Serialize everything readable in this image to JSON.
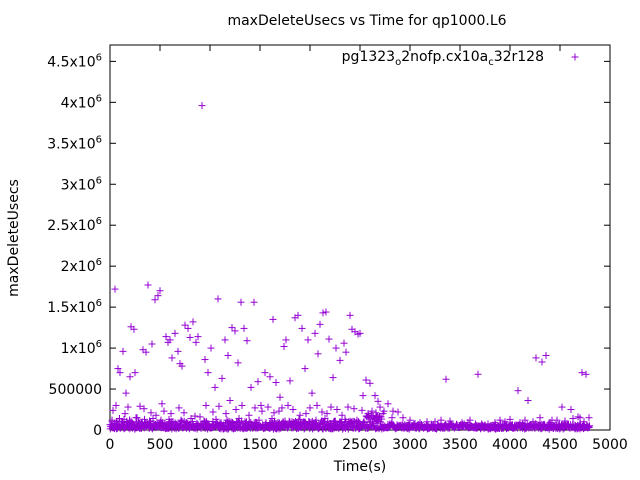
{
  "chart_data": {
    "type": "scatter",
    "title": "maxDeleteUsecs vs Time for qp1000.L6",
    "xlabel": "Time(s)",
    "ylabel": "maxDeleteUsecs",
    "xlim": [
      0,
      5000
    ],
    "ylim": [
      0,
      4700000
    ],
    "grid": false,
    "legend_position": "top-right",
    "marker": "plus",
    "x_ticks": [
      {
        "value": 0,
        "label": "0"
      },
      {
        "value": 500,
        "label": "500"
      },
      {
        "value": 1000,
        "label": "1000"
      },
      {
        "value": 1500,
        "label": "1500"
      },
      {
        "value": 2000,
        "label": "2000"
      },
      {
        "value": 2500,
        "label": "2500"
      },
      {
        "value": 3000,
        "label": "3000"
      },
      {
        "value": 3500,
        "label": "3500"
      },
      {
        "value": 4000,
        "label": "4000"
      },
      {
        "value": 4500,
        "label": "4500"
      },
      {
        "value": 5000,
        "label": "5000"
      }
    ],
    "y_ticks": [
      {
        "value": 0,
        "base": "0",
        "exp": ""
      },
      {
        "value": 500000,
        "base": "500000",
        "exp": ""
      },
      {
        "value": 1000000,
        "base": "1x10",
        "exp": "6"
      },
      {
        "value": 1500000,
        "base": "1.5x10",
        "exp": "6"
      },
      {
        "value": 2000000,
        "base": "2x10",
        "exp": "6"
      },
      {
        "value": 2500000,
        "base": "2.5x10",
        "exp": "6"
      },
      {
        "value": 3000000,
        "base": "3x10",
        "exp": "6"
      },
      {
        "value": 3500000,
        "base": "3.5x10",
        "exp": "6"
      },
      {
        "value": 4000000,
        "base": "4x10",
        "exp": "6"
      },
      {
        "value": 4500000,
        "base": "4.5x10",
        "exp": "6"
      }
    ],
    "legend": {
      "p1": "pg1323",
      "s1": "o",
      "p2": "2nofp.cx10a",
      "s2": "c",
      "p3": "32r128"
    },
    "series": [
      {
        "color": "#9400d3",
        "points": [
          [
            50,
            1720000
          ],
          [
            80,
            750000
          ],
          [
            100,
            700000
          ],
          [
            130,
            960000
          ],
          [
            160,
            450000
          ],
          [
            200,
            650000
          ],
          [
            210,
            1260000
          ],
          [
            240,
            1230000
          ],
          [
            250,
            700000
          ],
          [
            300,
            290000
          ],
          [
            330,
            980000
          ],
          [
            360,
            950000
          ],
          [
            380,
            1770000
          ],
          [
            420,
            1050000
          ],
          [
            450,
            1590000
          ],
          [
            480,
            1640000
          ],
          [
            500,
            1700000
          ],
          [
            520,
            320000
          ],
          [
            560,
            1140000
          ],
          [
            580,
            1070000
          ],
          [
            600,
            1100000
          ],
          [
            620,
            880000
          ],
          [
            650,
            1180000
          ],
          [
            680,
            960000
          ],
          [
            700,
            810000
          ],
          [
            720,
            780000
          ],
          [
            750,
            1280000
          ],
          [
            780,
            1240000
          ],
          [
            800,
            1130000
          ],
          [
            830,
            1320000
          ],
          [
            860,
            1070000
          ],
          [
            880,
            1140000
          ],
          [
            920,
            3960000
          ],
          [
            950,
            860000
          ],
          [
            980,
            700000
          ],
          [
            1010,
            1000000
          ],
          [
            1050,
            520000
          ],
          [
            1080,
            1600000
          ],
          [
            1120,
            630000
          ],
          [
            1150,
            1100000
          ],
          [
            1180,
            910000
          ],
          [
            1220,
            1250000
          ],
          [
            1250,
            1210000
          ],
          [
            1280,
            820000
          ],
          [
            1310,
            1560000
          ],
          [
            1340,
            1240000
          ],
          [
            1370,
            1090000
          ],
          [
            1410,
            520000
          ],
          [
            1440,
            1560000
          ],
          [
            1480,
            590000
          ],
          [
            1510,
            300000
          ],
          [
            1550,
            700000
          ],
          [
            1600,
            650000
          ],
          [
            1630,
            1350000
          ],
          [
            1660,
            580000
          ],
          [
            1700,
            400000
          ],
          [
            1740,
            1020000
          ],
          [
            1760,
            1100000
          ],
          [
            1800,
            600000
          ],
          [
            1850,
            1370000
          ],
          [
            1880,
            1400000
          ],
          [
            1920,
            1240000
          ],
          [
            1950,
            750000
          ],
          [
            1980,
            1100000
          ],
          [
            2020,
            450000
          ],
          [
            2050,
            1180000
          ],
          [
            2080,
            930000
          ],
          [
            2100,
            1290000
          ],
          [
            2130,
            1430000
          ],
          [
            2160,
            1440000
          ],
          [
            2190,
            1110000
          ],
          [
            2230,
            640000
          ],
          [
            2260,
            1000000
          ],
          [
            2300,
            850000
          ],
          [
            2340,
            1060000
          ],
          [
            2360,
            950000
          ],
          [
            2400,
            1400000
          ],
          [
            2420,
            1230000
          ],
          [
            2450,
            1200000
          ],
          [
            2480,
            1170000
          ],
          [
            2500,
            1180000
          ],
          [
            2530,
            420000
          ],
          [
            2560,
            610000
          ],
          [
            2600,
            570000
          ],
          [
            2650,
            420000
          ],
          [
            2680,
            350000
          ],
          [
            2700,
            280000
          ],
          [
            2730,
            200000
          ],
          [
            2780,
            320000
          ],
          [
            2830,
            230000
          ],
          [
            2880,
            220000
          ],
          [
            2930,
            150000
          ],
          [
            3050,
            80000
          ],
          [
            3170,
            100000
          ],
          [
            3310,
            120000
          ],
          [
            3360,
            620000
          ],
          [
            3430,
            60000
          ],
          [
            3580,
            90000
          ],
          [
            3680,
            680000
          ],
          [
            3850,
            90000
          ],
          [
            3950,
            100000
          ],
          [
            4080,
            480000
          ],
          [
            4180,
            360000
          ],
          [
            4260,
            880000
          ],
          [
            4320,
            830000
          ],
          [
            4360,
            910000
          ],
          [
            4420,
            120000
          ],
          [
            4520,
            280000
          ],
          [
            4610,
            250000
          ],
          [
            4700,
            150000
          ],
          [
            4720,
            700000
          ],
          [
            4760,
            680000
          ],
          [
            30,
            240000
          ],
          [
            60,
            300000
          ],
          [
            150,
            200000
          ],
          [
            180,
            280000
          ],
          [
            270,
            150000
          ],
          [
            340,
            260000
          ],
          [
            410,
            210000
          ],
          [
            460,
            180000
          ],
          [
            540,
            230000
          ],
          [
            610,
            200000
          ],
          [
            690,
            270000
          ],
          [
            740,
            210000
          ],
          [
            850,
            170000
          ],
          [
            900,
            160000
          ],
          [
            960,
            300000
          ],
          [
            1030,
            220000
          ],
          [
            1090,
            290000
          ],
          [
            1160,
            200000
          ],
          [
            1200,
            360000
          ],
          [
            1260,
            250000
          ],
          [
            1320,
            300000
          ],
          [
            1390,
            180000
          ],
          [
            1450,
            270000
          ],
          [
            1520,
            230000
          ],
          [
            1580,
            280000
          ],
          [
            1640,
            210000
          ],
          [
            1690,
            230000
          ],
          [
            1720,
            270000
          ],
          [
            1780,
            300000
          ],
          [
            1830,
            250000
          ],
          [
            1900,
            180000
          ],
          [
            1960,
            200000
          ],
          [
            2000,
            270000
          ],
          [
            2070,
            300000
          ],
          [
            2120,
            220000
          ],
          [
            2170,
            200000
          ],
          [
            2210,
            280000
          ],
          [
            2270,
            250000
          ],
          [
            2320,
            180000
          ],
          [
            2380,
            280000
          ],
          [
            2440,
            260000
          ],
          [
            2520,
            240000
          ],
          [
            2580,
            200000
          ],
          [
            2620,
            230000
          ],
          [
            2660,
            210000
          ],
          [
            2740,
            230000
          ],
          [
            2820,
            150000
          ],
          [
            3000,
            120000
          ],
          [
            3100,
            90000
          ],
          [
            3250,
            100000
          ],
          [
            3400,
            110000
          ],
          [
            3520,
            90000
          ],
          [
            3600,
            120000
          ],
          [
            3750,
            60000
          ],
          [
            3900,
            120000
          ],
          [
            4000,
            130000
          ],
          [
            4100,
            90000
          ],
          [
            4150,
            120000
          ],
          [
            4230,
            100000
          ],
          [
            4300,
            150000
          ],
          [
            4400,
            90000
          ],
          [
            4470,
            120000
          ],
          [
            4550,
            110000
          ],
          [
            4630,
            140000
          ],
          [
            4680,
            160000
          ],
          [
            4740,
            100000
          ],
          [
            4790,
            150000
          ],
          [
            20,
            120000
          ],
          [
            45,
            80000
          ],
          [
            70,
            100000
          ],
          [
            95,
            140000
          ],
          [
            115,
            60000
          ],
          [
            140,
            130000
          ],
          [
            170,
            90000
          ],
          [
            195,
            120000
          ],
          [
            225,
            70000
          ],
          [
            260,
            150000
          ],
          [
            285,
            100000
          ],
          [
            315,
            80000
          ],
          [
            345,
            130000
          ],
          [
            370,
            60000
          ],
          [
            395,
            110000
          ],
          [
            430,
            140000
          ],
          [
            470,
            90000
          ],
          [
            510,
            120000
          ],
          [
            550,
            80000
          ],
          [
            590,
            130000
          ],
          [
            630,
            100000
          ],
          [
            670,
            70000
          ],
          [
            710,
            120000
          ],
          [
            760,
            90000
          ],
          [
            810,
            140000
          ],
          [
            870,
            80000
          ],
          [
            940,
            110000
          ],
          [
            990,
            70000
          ],
          [
            1060,
            130000
          ],
          [
            1110,
            90000
          ],
          [
            1170,
            120000
          ],
          [
            1230,
            80000
          ],
          [
            1290,
            140000
          ],
          [
            1350,
            100000
          ],
          [
            1420,
            70000
          ],
          [
            1490,
            120000
          ],
          [
            1560,
            90000
          ],
          [
            1620,
            140000
          ],
          [
            1680,
            80000
          ],
          [
            1750,
            110000
          ],
          [
            1820,
            70000
          ],
          [
            1890,
            130000
          ],
          [
            1940,
            100000
          ],
          [
            2010,
            60000
          ],
          [
            2060,
            120000
          ],
          [
            2110,
            90000
          ],
          [
            2150,
            140000
          ],
          [
            2200,
            80000
          ],
          [
            2250,
            110000
          ],
          [
            2290,
            70000
          ],
          [
            2350,
            130000
          ],
          [
            2410,
            90000
          ],
          [
            2470,
            120000
          ],
          [
            2540,
            100000
          ],
          [
            2570,
            160000
          ],
          [
            2610,
            180000
          ],
          [
            2640,
            140000
          ],
          [
            2670,
            120000
          ],
          [
            2710,
            160000
          ]
        ]
      }
    ]
  }
}
